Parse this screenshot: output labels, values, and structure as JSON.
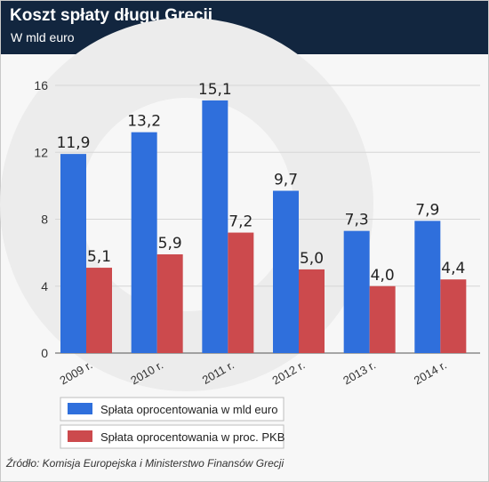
{
  "chart_data": {
    "type": "bar",
    "title": "Koszt spłaty długu Grecji",
    "subtitle": "W mld euro",
    "categories": [
      "2009 r.",
      "2010 r.",
      "2011 r.",
      "2012 r.",
      "2013 r.",
      "2014 r."
    ],
    "series": [
      {
        "name": "Spłata oprocentowania w mld euro",
        "values": [
          11.9,
          13.2,
          15.1,
          9.7,
          7.3,
          7.9
        ],
        "labels": [
          "11,9",
          "13,2",
          "15,1",
          "9,7",
          "7,3",
          "7,9"
        ],
        "color": "#2f6fdc"
      },
      {
        "name": "Spłata oprocentowania w proc. PKB",
        "values": [
          5.1,
          5.9,
          7.2,
          5.0,
          4.0,
          4.4
        ],
        "labels": [
          "5,1",
          "5,9",
          "7,2",
          "5,0",
          "4,0",
          "4,4"
        ],
        "color": "#cc4a4d"
      }
    ],
    "ylim": [
      0,
      16
    ],
    "yticks": [
      0,
      4,
      8,
      12,
      16
    ],
    "grid": true,
    "legend": "bottom-left",
    "source": "Źródło: Komisja Europejska i Ministerstwo Finansów Grecji"
  },
  "colors": {
    "header_bg": "#12263f",
    "blue": "#2f6fdc",
    "red": "#cc4a4d"
  }
}
